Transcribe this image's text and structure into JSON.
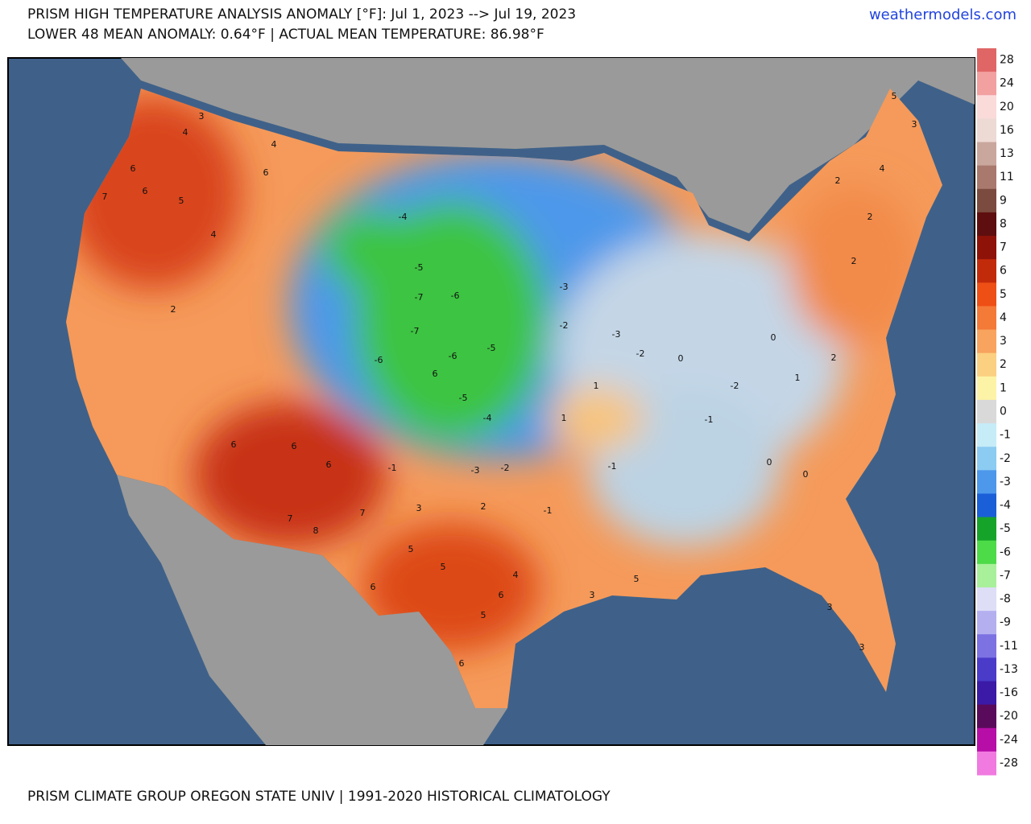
{
  "header": {
    "title": "PRISM HIGH TEMPERATURE ANALYSIS ANOMALY [°F]: Jul 1, 2023 --> Jul 19, 2023",
    "subtitle": "LOWER 48 MEAN ANOMALY: 0.64°F | ACTUAL MEAN TEMPERATURE: 86.98°F",
    "source": "weathermodels.com"
  },
  "footer": "PRISM CLIMATE GROUP OREGON STATE UNIV | 1991-2020 HISTORICAL CLIMATOLOGY",
  "colorbar": {
    "levels": [
      28,
      24,
      20,
      16,
      13,
      11,
      9,
      8,
      7,
      6,
      5,
      4,
      3,
      2,
      1,
      0,
      -1,
      -2,
      -3,
      -4,
      -5,
      -6,
      -7,
      -8,
      -9,
      -11,
      -13,
      -16,
      -20,
      -24,
      -28
    ],
    "colors": [
      "#e06666",
      "#f2a0a0",
      "#fbdada",
      "#eddad5",
      "#c9a79d",
      "#a8796c",
      "#7a4b3e",
      "#5e0e0e",
      "#8e1208",
      "#c22b0a",
      "#ee4f14",
      "#f47a38",
      "#f8a45e",
      "#fbd080",
      "#fdf3a6",
      "#d9d9d9",
      "#c6ecf7",
      "#8ccbf2",
      "#4d98ea",
      "#1a5fd8",
      "#16a32a",
      "#4ddb48",
      "#a9f09a",
      "#dedef7",
      "#b4b0f0",
      "#7c72e2",
      "#4a3bc9",
      "#3a1aa6",
      "#5a0a5a",
      "#b80ea8",
      "#f07ae0"
    ]
  },
  "map_labels": [
    6,
    7,
    6,
    5,
    3,
    4,
    4,
    6,
    4,
    2,
    6,
    6,
    6,
    7,
    8,
    7,
    6,
    5,
    5,
    5,
    6,
    4,
    6,
    3,
    5,
    3,
    3,
    -1,
    3,
    -3,
    -2,
    2,
    -1,
    -4,
    -5,
    -7,
    -7,
    -6,
    -6,
    -5,
    -6,
    -5,
    6,
    -4,
    -3,
    -2,
    -3,
    -2,
    0,
    -2,
    0,
    1,
    2,
    2,
    2,
    4,
    2,
    5,
    3,
    0,
    0,
    -1,
    1,
    1,
    -1
  ]
}
